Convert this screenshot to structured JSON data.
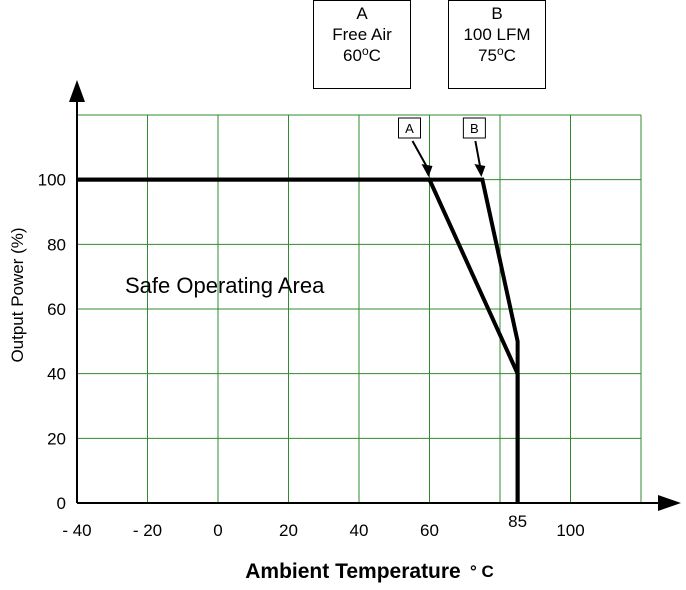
{
  "chart_data": {
    "type": "line",
    "xlabel": "Ambient Temperature",
    "xlabel_unit": "° C",
    "ylabel": "Output Power (%)",
    "xlim": [
      -40,
      120
    ],
    "ylim": [
      0,
      120
    ],
    "x_ticks": [
      {
        "value": -40,
        "label": "- 40"
      },
      {
        "value": -20,
        "label": "- 20"
      },
      {
        "value": 0,
        "label": "0"
      },
      {
        "value": 20,
        "label": "20"
      },
      {
        "value": 40,
        "label": "40"
      },
      {
        "value": 60,
        "label": "60"
      },
      {
        "value": 85,
        "label": "85"
      },
      {
        "value": 100,
        "label": "100"
      }
    ],
    "y_ticks": [
      {
        "value": 0,
        "label": "0"
      },
      {
        "value": 20,
        "label": "20"
      },
      {
        "value": 40,
        "label": "40"
      },
      {
        "value": 60,
        "label": "60"
      },
      {
        "value": 80,
        "label": "80"
      },
      {
        "value": 100,
        "label": "100"
      }
    ],
    "grid": true,
    "grid_color": "#2e8b2e",
    "line_color": "#000000",
    "series": [
      {
        "name": "A",
        "x": [
          -40,
          60,
          85,
          85
        ],
        "y": [
          100,
          100,
          40,
          0
        ]
      },
      {
        "name": "B",
        "x": [
          -40,
          75,
          85,
          85
        ],
        "y": [
          100,
          100,
          50,
          0
        ]
      }
    ],
    "annotation": "Safe Operating Area",
    "legend": [
      {
        "letter": "A",
        "line1": "Free Air",
        "temp": "60",
        "unit": "C"
      },
      {
        "letter": "B",
        "line1": "100 LFM",
        "temp": "75",
        "unit": "C"
      }
    ],
    "markers": [
      {
        "label": "A",
        "x": 60
      },
      {
        "label": "B",
        "x": 75
      }
    ]
  }
}
